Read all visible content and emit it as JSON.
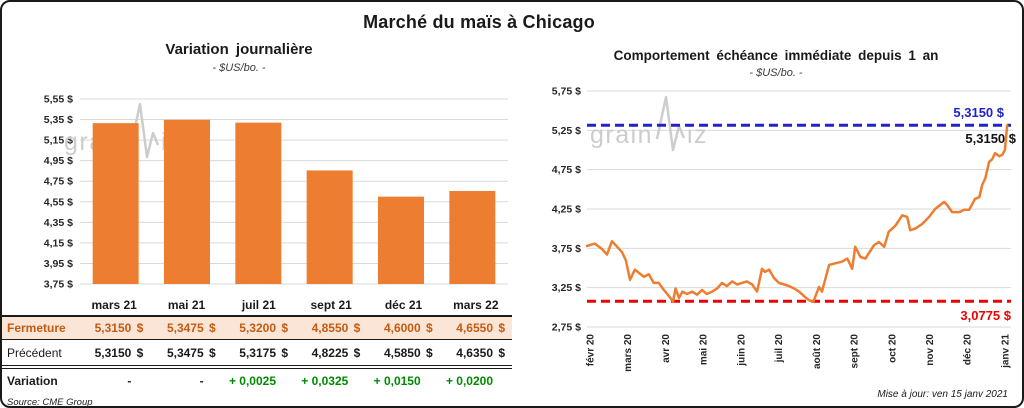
{
  "card": {
    "title": "Marché du maïs à Chicago",
    "source": "Source: CME Group",
    "updated": "Mise à jour: ven 15 janv 2021",
    "watermark": {
      "prefix": "grain",
      "suffix": "iz"
    }
  },
  "colors": {
    "orange": "#ED7D31",
    "fermeture_text": "#C55A11",
    "fermeture_bg": "#FBE5D6",
    "variation_green": "#008A00",
    "ref_high_blue": "#2121CC",
    "ref_low_red": "#EE0000",
    "grid": "#D9D9D9",
    "watermark_gray": "#CDCDCD"
  },
  "chart_data": [
    {
      "type": "bar",
      "title": "Variation journalière",
      "subtitle": "- $US/bo. -",
      "categories": [
        "mars 21",
        "mai 21",
        "juil 21",
        "sept 21",
        "déc 21",
        "mars 22"
      ],
      "values": [
        5.315,
        5.3475,
        5.32,
        4.855,
        4.6,
        4.655
      ],
      "ylim": [
        3.75,
        5.55
      ],
      "grid": true,
      "bar_color": "#ED7D31",
      "yticks": [
        {
          "v": 5.55,
          "label": "5,55 $"
        },
        {
          "v": 5.35,
          "label": "5,35 $"
        },
        {
          "v": 5.15,
          "label": "5,15 $"
        },
        {
          "v": 4.95,
          "label": "4,95 $"
        },
        {
          "v": 4.75,
          "label": "4,75 $"
        },
        {
          "v": 4.55,
          "label": "4,55 $"
        },
        {
          "v": 4.35,
          "label": "4,35 $"
        },
        {
          "v": 4.15,
          "label": "4,15 $"
        },
        {
          "v": 3.95,
          "label": "3,95 $"
        },
        {
          "v": 3.75,
          "label": "3,75 $"
        }
      ]
    },
    {
      "type": "line",
      "title": "Comportement échéance immédiate depuis 1 an",
      "subtitle": "- $US/bo. -",
      "x_labels": [
        "févr 20",
        "mars 20",
        "avr 20",
        "mai 20",
        "juin 20",
        "juil 20",
        "août 20",
        "sept 20",
        "oct 20",
        "nov 20",
        "déc 20",
        "janv 21"
      ],
      "ylim": [
        2.75,
        5.75
      ],
      "grid": true,
      "legend": "none",
      "yticks": [
        {
          "v": 5.75,
          "label": "5,75 $"
        },
        {
          "v": 5.25,
          "label": "5,25 $"
        },
        {
          "v": 4.75,
          "label": "4,75 $"
        },
        {
          "v": 4.25,
          "label": "4,25 $"
        },
        {
          "v": 3.75,
          "label": "3,75 $"
        },
        {
          "v": 3.25,
          "label": "3,25 $"
        },
        {
          "v": 2.75,
          "label": "2,75 $"
        }
      ],
      "series": [
        {
          "name": "échéance immédiate",
          "color": "#ED7D31",
          "points": [
            [
              -0.08,
              3.78
            ],
            [
              0.05,
              3.8
            ],
            [
              0.13,
              3.81
            ],
            [
              0.32,
              3.74
            ],
            [
              0.45,
              3.67
            ],
            [
              0.58,
              3.84
            ],
            [
              0.72,
              3.77
            ],
            [
              0.85,
              3.7
            ],
            [
              0.95,
              3.6
            ],
            [
              1.06,
              3.35
            ],
            [
              1.19,
              3.48
            ],
            [
              1.29,
              3.44
            ],
            [
              1.43,
              3.39
            ],
            [
              1.56,
              3.42
            ],
            [
              1.69,
              3.31
            ],
            [
              1.82,
              3.31
            ],
            [
              1.96,
              3.22
            ],
            [
              2.1,
              3.14
            ],
            [
              2.2,
              3.07
            ],
            [
              2.27,
              3.24
            ],
            [
              2.36,
              3.12
            ],
            [
              2.45,
              3.2
            ],
            [
              2.57,
              3.17
            ],
            [
              2.71,
              3.2
            ],
            [
              2.84,
              3.16
            ],
            [
              2.97,
              3.22
            ],
            [
              3.1,
              3.17
            ],
            [
              3.24,
              3.2
            ],
            [
              3.37,
              3.24
            ],
            [
              3.5,
              3.31
            ],
            [
              3.63,
              3.27
            ],
            [
              3.77,
              3.33
            ],
            [
              3.9,
              3.29
            ],
            [
              4.03,
              3.31
            ],
            [
              4.16,
              3.33
            ],
            [
              4.3,
              3.29
            ],
            [
              4.43,
              3.2
            ],
            [
              4.56,
              3.49
            ],
            [
              4.64,
              3.45
            ],
            [
              4.75,
              3.48
            ],
            [
              4.88,
              3.37
            ],
            [
              5.01,
              3.31
            ],
            [
              5.15,
              3.29
            ],
            [
              5.28,
              3.27
            ],
            [
              5.41,
              3.24
            ],
            [
              5.54,
              3.2
            ],
            [
              5.68,
              3.14
            ],
            [
              5.81,
              3.09
            ],
            [
              5.92,
              3.07
            ],
            [
              6.07,
              3.26
            ],
            [
              6.15,
              3.2
            ],
            [
              6.34,
              3.54
            ],
            [
              6.5,
              3.56
            ],
            [
              6.68,
              3.58
            ],
            [
              6.82,
              3.62
            ],
            [
              6.95,
              3.49
            ],
            [
              7.03,
              3.77
            ],
            [
              7.17,
              3.64
            ],
            [
              7.3,
              3.62
            ],
            [
              7.53,
              3.79
            ],
            [
              7.66,
              3.83
            ],
            [
              7.8,
              3.77
            ],
            [
              7.92,
              3.96
            ],
            [
              8.1,
              4.04
            ],
            [
              8.28,
              4.17
            ],
            [
              8.41,
              4.15
            ],
            [
              8.49,
              3.98
            ],
            [
              8.62,
              4.0
            ],
            [
              8.81,
              4.06
            ],
            [
              8.99,
              4.15
            ],
            [
              9.15,
              4.25
            ],
            [
              9.39,
              4.34
            ],
            [
              9.47,
              4.3
            ],
            [
              9.6,
              4.21
            ],
            [
              9.79,
              4.21
            ],
            [
              9.92,
              4.24
            ],
            [
              10.05,
              4.24
            ],
            [
              10.21,
              4.38
            ],
            [
              10.32,
              4.4
            ],
            [
              10.4,
              4.56
            ],
            [
              10.48,
              4.64
            ],
            [
              10.58,
              4.85
            ],
            [
              10.66,
              4.88
            ],
            [
              10.74,
              4.96
            ],
            [
              10.85,
              4.92
            ],
            [
              10.93,
              4.94
            ],
            [
              11.0,
              5.0
            ],
            [
              11.06,
              5.315
            ]
          ]
        }
      ],
      "ref_lines": [
        {
          "value": 5.315,
          "label": "5,3150 $",
          "color": "#2121CC",
          "position": "high"
        },
        {
          "value": 3.0775,
          "label": "3,0775 $",
          "color": "#EE0000",
          "position": "low"
        }
      ],
      "end_label": "5,3150 $"
    }
  ],
  "table": {
    "columns": [
      "mars 21",
      "mai 21",
      "juil 21",
      "sept 21",
      "déc 21",
      "mars 22"
    ],
    "rows": [
      {
        "label": "Fermeture",
        "style": "fermeture",
        "unit": "$",
        "values": [
          "5,3150",
          "5,3475",
          "5,3200",
          "4,8550",
          "4,6000",
          "4,6550"
        ]
      },
      {
        "label": "Précédent",
        "style": "precedent",
        "unit": "$",
        "values": [
          "5,3150",
          "5,3475",
          "5,3175",
          "4,8225",
          "4,5850",
          "4,6350"
        ]
      },
      {
        "label": "Variation",
        "style": "variation",
        "unit": "",
        "values": [
          "-",
          "-",
          "+ 0,0025",
          "+ 0,0325",
          "+ 0,0150",
          "+ 0,0200"
        ]
      }
    ]
  }
}
